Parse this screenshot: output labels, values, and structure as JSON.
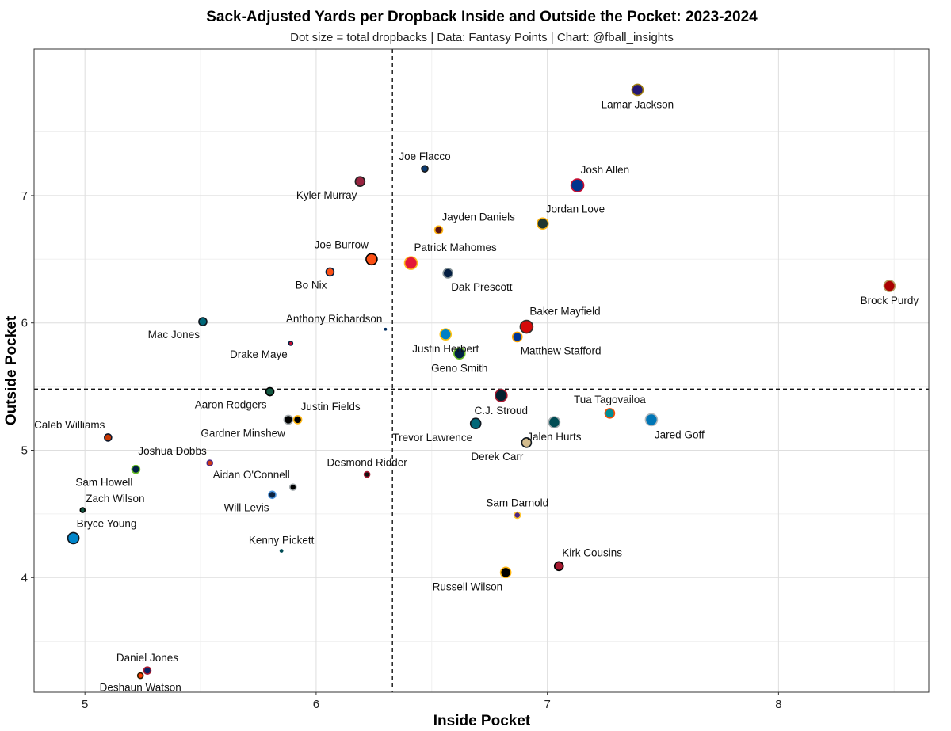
{
  "chart_data": {
    "type": "scatter",
    "title": "Sack-Adjusted Yards per Dropback Inside and Outside the Pocket: 2023-2024",
    "subtitle": "Dot size = total dropbacks | Data: Fantasy Points | Chart: @fball_insights",
    "xlabel": "Inside Pocket",
    "ylabel": "Outside Pocket",
    "xlim": [
      4.78,
      8.65
    ],
    "ylim": [
      3.1,
      8.15
    ],
    "xticks": [
      5,
      6,
      7,
      8
    ],
    "yticks": [
      4,
      5,
      6,
      7
    ],
    "reference_lines": {
      "x": 6.33,
      "y": 5.48
    },
    "grid": true,
    "points": [
      {
        "name": "Lamar Jackson",
        "x": 7.39,
        "y": 7.83,
        "size": 7,
        "fill": "#241773",
        "stroke": "#9E7C0C",
        "label_pos": "below"
      },
      {
        "name": "Joe Flacco",
        "x": 6.47,
        "y": 7.21,
        "size": 4,
        "fill": "#0B3A6E",
        "stroke": "#1a1a1a",
        "label_pos": "above"
      },
      {
        "name": "Kyler Murray",
        "x": 6.19,
        "y": 7.11,
        "size": 6,
        "fill": "#97233F",
        "stroke": "#222222",
        "label_pos": "below-left"
      },
      {
        "name": "Josh Allen",
        "x": 7.13,
        "y": 7.08,
        "size": 8,
        "fill": "#00338D",
        "stroke": "#C60C30",
        "label_pos": "above-right"
      },
      {
        "name": "Jordan Love",
        "x": 6.98,
        "y": 6.78,
        "size": 7,
        "fill": "#203731",
        "stroke": "#FFB612",
        "label_pos": "above-right"
      },
      {
        "name": "Jayden Daniels",
        "x": 6.53,
        "y": 6.73,
        "size": 5,
        "fill": "#5A1414",
        "stroke": "#FFB612",
        "label_pos": "above-right"
      },
      {
        "name": "Joe Burrow",
        "x": 6.24,
        "y": 6.5,
        "size": 7,
        "fill": "#FB4F14",
        "stroke": "#000000",
        "label_pos": "above-left"
      },
      {
        "name": "Patrick Mahomes",
        "x": 6.41,
        "y": 6.47,
        "size": 8,
        "fill": "#E31837",
        "stroke": "#FFB81C",
        "label_pos": "above-right"
      },
      {
        "name": "Bo Nix",
        "x": 6.06,
        "y": 6.4,
        "size": 5,
        "fill": "#FB4F14",
        "stroke": "#002244",
        "label_pos": "below-left"
      },
      {
        "name": "Dak Prescott",
        "x": 6.57,
        "y": 6.39,
        "size": 6,
        "fill": "#041E42",
        "stroke": "#869397",
        "label_pos": "below-right"
      },
      {
        "name": "Brock Purdy",
        "x": 8.48,
        "y": 6.29,
        "size": 7,
        "fill": "#AA0000",
        "stroke": "#B3995D",
        "label_pos": "below"
      },
      {
        "name": "Mac Jones",
        "x": 5.51,
        "y": 6.01,
        "size": 5,
        "fill": "#006778",
        "stroke": "#101820",
        "label_pos": "below-left"
      },
      {
        "name": "Baker Mayfield",
        "x": 6.91,
        "y": 5.97,
        "size": 8,
        "fill": "#D50A0A",
        "stroke": "#34302B",
        "label_pos": "above-right"
      },
      {
        "name": "Anthony Richardson",
        "x": 6.3,
        "y": 5.95,
        "size": 1.5,
        "fill": "#002C5F",
        "stroke": "#002C5F",
        "label_pos": "above-left"
      },
      {
        "name": "Justin Herbert",
        "x": 6.56,
        "y": 5.91,
        "size": 7,
        "fill": "#0080C6",
        "stroke": "#FFC20E",
        "label_pos": "below"
      },
      {
        "name": "Matthew Stafford",
        "x": 6.87,
        "y": 5.89,
        "size": 6,
        "fill": "#003594",
        "stroke": "#FFA300",
        "label_pos": "below-right"
      },
      {
        "name": "Drake Maye",
        "x": 5.89,
        "y": 5.84,
        "size": 2.5,
        "fill": "#C60C30",
        "stroke": "#002244",
        "label_pos": "below-left"
      },
      {
        "name": "Geno Smith",
        "x": 6.62,
        "y": 5.76,
        "size": 7,
        "fill": "#002244",
        "stroke": "#69BE28",
        "label_pos": "below"
      },
      {
        "name": "Aaron Rodgers",
        "x": 5.8,
        "y": 5.46,
        "size": 5,
        "fill": "#125740",
        "stroke": "#000000",
        "label_pos": "below-left"
      },
      {
        "name": "C.J. Stroud",
        "x": 6.8,
        "y": 5.43,
        "size": 7.5,
        "fill": "#03202F",
        "stroke": "#A71930",
        "label_pos": "below"
      },
      {
        "name": "Tua Tagovailoa",
        "x": 7.27,
        "y": 5.29,
        "size": 6,
        "fill": "#008E97",
        "stroke": "#FC4C02",
        "label_pos": "above"
      },
      {
        "name": "Justin Fields",
        "x": 5.92,
        "y": 5.24,
        "size": 5,
        "fill": "#000000",
        "stroke": "#FFB612",
        "label_pos": "above-right"
      },
      {
        "name": "Gardner Minshew",
        "x": 5.88,
        "y": 5.24,
        "size": 5.5,
        "fill": "#000000",
        "stroke": "#A5ACAF",
        "label_pos": "below-left"
      },
      {
        "name": "Jared Goff",
        "x": 7.45,
        "y": 5.24,
        "size": 7.5,
        "fill": "#0076B6",
        "stroke": "#B0B7BC",
        "label_pos": "below-right"
      },
      {
        "name": "Jalen Hurts",
        "x": 7.03,
        "y": 5.22,
        "size": 7,
        "fill": "#004C54",
        "stroke": "#A5ACAF",
        "label_pos": "below"
      },
      {
        "name": "Trevor Lawrence",
        "x": 6.69,
        "y": 5.21,
        "size": 6.5,
        "fill": "#006778",
        "stroke": "#101820",
        "label_pos": "below-left"
      },
      {
        "name": "Caleb Williams",
        "x": 5.1,
        "y": 5.1,
        "size": 4.5,
        "fill": "#C83803",
        "stroke": "#0B162A",
        "label_pos": "above-left"
      },
      {
        "name": "Derek Carr",
        "x": 6.91,
        "y": 5.06,
        "size": 6,
        "fill": "#D3BC8D",
        "stroke": "#101820",
        "label_pos": "below-left"
      },
      {
        "name": "Joshua Dobbs",
        "x": 5.54,
        "y": 4.9,
        "size": 3.5,
        "fill": "#D03A13",
        "stroke": "#4F2683",
        "label_pos": "above-left"
      },
      {
        "name": "Sam Howell",
        "x": 5.22,
        "y": 4.85,
        "size": 5,
        "fill": "#002244",
        "stroke": "#69BE28",
        "label_pos": "below-left"
      },
      {
        "name": "Desmond Ridder",
        "x": 6.22,
        "y": 4.81,
        "size": 3.5,
        "fill": "#111111",
        "stroke": "#A71930",
        "label_pos": "above"
      },
      {
        "name": "Aidan O'Connell",
        "x": 5.9,
        "y": 4.71,
        "size": 4,
        "fill": "#000000",
        "stroke": "#A5ACAF",
        "label_pos": "above-left"
      },
      {
        "name": "Will Levis",
        "x": 5.81,
        "y": 4.65,
        "size": 4.5,
        "fill": "#0C2340",
        "stroke": "#4B92DB",
        "label_pos": "below-left"
      },
      {
        "name": "Zach Wilson",
        "x": 4.99,
        "y": 4.53,
        "size": 3,
        "fill": "#125740",
        "stroke": "#000000",
        "label_pos": "above-right"
      },
      {
        "name": "Sam Darnold",
        "x": 6.87,
        "y": 4.49,
        "size": 4,
        "fill": "#4F2683",
        "stroke": "#FFC62F",
        "label_pos": "above"
      },
      {
        "name": "Bryce Young",
        "x": 4.95,
        "y": 4.31,
        "size": 7,
        "fill": "#0085CA",
        "stroke": "#101820",
        "label_pos": "above-right"
      },
      {
        "name": "Kenny Pickett",
        "x": 5.85,
        "y": 4.21,
        "size": 2,
        "fill": "#004C54",
        "stroke": "#004C54",
        "label_pos": "above"
      },
      {
        "name": "Kirk Cousins",
        "x": 7.05,
        "y": 4.09,
        "size": 5.5,
        "fill": "#A71930",
        "stroke": "#000000",
        "label_pos": "above-right"
      },
      {
        "name": "Russell Wilson",
        "x": 6.82,
        "y": 4.04,
        "size": 6.5,
        "fill": "#000000",
        "stroke": "#FFB612",
        "label_pos": "below-left"
      },
      {
        "name": "Daniel Jones",
        "x": 5.27,
        "y": 3.27,
        "size": 4.5,
        "fill": "#0B2265",
        "stroke": "#A71930",
        "label_pos": "above"
      },
      {
        "name": "Deshaun Watson",
        "x": 5.24,
        "y": 3.23,
        "size": 3.5,
        "fill": "#FF3C00",
        "stroke": "#311D00",
        "label_pos": "below"
      }
    ]
  }
}
